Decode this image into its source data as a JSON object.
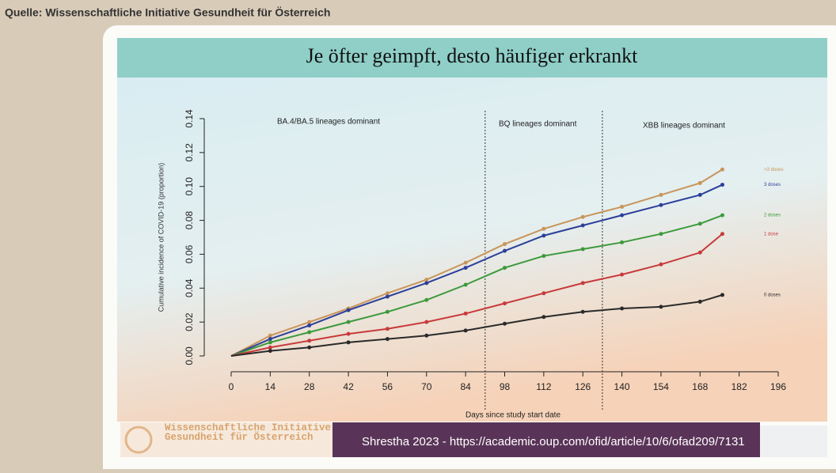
{
  "source": "Quelle: Wissenschaftliche Initiative Gesundheit für Österreich",
  "footer": {
    "logo": "Wissenschaftliche Initiative Gesundheit für Österreich",
    "citation": "Shrestha 2023 - https://academic.oup.com/ofid/article/10/6/ofad209/7131"
  },
  "chart_data": {
    "type": "line",
    "title": "Je öfter geimpft, desto häufiger erkrankt",
    "x_label": "Days since study start date",
    "y_label": "Cumulative incidence of COVID-19 (proportion)",
    "annotations": [
      "BA.4/BA.5 lineages dominant",
      "BQ lineages dominant",
      "XBB lineages dominant"
    ],
    "period_boundaries": [
      91,
      133
    ],
    "x": [
      0,
      14,
      28,
      42,
      56,
      70,
      84,
      98,
      112,
      126,
      140,
      154,
      168,
      176
    ],
    "series": [
      {
        "name": ">3 doses",
        "color": "#c8955a",
        "values": [
          0,
          0.012,
          0.02,
          0.028,
          0.037,
          0.045,
          0.055,
          0.066,
          0.075,
          0.082,
          0.088,
          0.095,
          0.102,
          0.11
        ]
      },
      {
        "name": "3 doses",
        "color": "#2c3f9a",
        "values": [
          0,
          0.01,
          0.018,
          0.027,
          0.035,
          0.043,
          0.052,
          0.062,
          0.071,
          0.077,
          0.083,
          0.089,
          0.095,
          0.101
        ]
      },
      {
        "name": "2 doses",
        "color": "#3c9a3c",
        "values": [
          0,
          0.008,
          0.014,
          0.02,
          0.026,
          0.033,
          0.042,
          0.052,
          0.059,
          0.063,
          0.067,
          0.072,
          0.078,
          0.083
        ]
      },
      {
        "name": "1 dose",
        "color": "#c83a3a",
        "values": [
          0,
          0.005,
          0.009,
          0.013,
          0.016,
          0.02,
          0.025,
          0.031,
          0.037,
          0.043,
          0.048,
          0.054,
          0.061,
          0.072
        ]
      },
      {
        "name": "0 doses",
        "color": "#2a2a2a",
        "values": [
          0,
          0.003,
          0.005,
          0.008,
          0.01,
          0.012,
          0.015,
          0.019,
          0.023,
          0.026,
          0.028,
          0.029,
          0.032,
          0.036
        ]
      }
    ],
    "xlim": [
      0,
      196
    ],
    "xticks": [
      0,
      14,
      28,
      42,
      56,
      70,
      84,
      98,
      112,
      126,
      140,
      154,
      168,
      182,
      196
    ],
    "ylim": [
      0,
      0.14
    ],
    "yticks": [
      {
        "value": 0,
        "label": "0.00"
      },
      0.02,
      0.04,
      0.06,
      0.08,
      {
        "value": 0.1,
        "label": "0.10"
      },
      0.12,
      0.14
    ]
  }
}
